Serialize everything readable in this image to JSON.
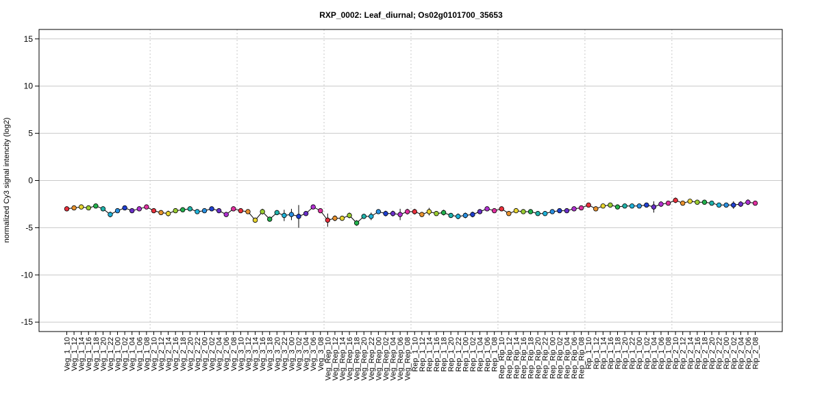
{
  "chart_data": {
    "type": "line",
    "title": "RXP_0002: Leaf_diurnal; Os02g0101700_35653",
    "xlabel": "",
    "ylabel": "normalized Cy3 signal intencity (log2)",
    "ylim": [
      -16,
      16
    ],
    "yticks": [
      -15,
      -10,
      -5,
      0,
      5,
      10,
      15
    ],
    "grid": true,
    "categories": [
      "Veg_1_10",
      "Veg_1_12",
      "Veg_1_14",
      "Veg_1_16",
      "Veg_1_18",
      "Veg_1_20",
      "Veg_1_22",
      "Veg_1_00",
      "Veg_1_02",
      "Veg_1_04",
      "Veg_1_06",
      "Veg_1_08",
      "Veg_2_10",
      "Veg_2_12",
      "Veg_2_14",
      "Veg_2_16",
      "Veg_2_18",
      "Veg_2_20",
      "Veg_2_22",
      "Veg_2_00",
      "Veg_2_02",
      "Veg_2_04",
      "Veg_2_06",
      "Veg_2_08",
      "Veg_3_10",
      "Veg_3_12",
      "Veg_3_14",
      "Veg_3_16",
      "Veg_3_18",
      "Veg_3_20",
      "Veg_3_22",
      "Veg_3_00",
      "Veg_3_02",
      "Veg_3_04",
      "Veg_3_06",
      "Veg_3_08",
      "Veg_Rep_10",
      "Veg_Rep_12",
      "Veg_Rep_14",
      "Veg_Rep_16",
      "Veg_Rep_18",
      "Veg_Rep_20",
      "Veg_Rep_22",
      "Veg_Rep_00",
      "Veg_Rep_02",
      "Veg_Rep_04",
      "Veg_Rep_06",
      "Veg_Rep_08",
      "Rep_1_10",
      "Rep_1_12",
      "Rep_1_14",
      "Rep_1_16",
      "Rep_1_18",
      "Rep_1_20",
      "Rep_1_22",
      "Rep_1_00",
      "Rep_1_02",
      "Rep_1_04",
      "Rep_1_06",
      "Rep_1_08",
      "Rep_Rip_10",
      "Rep_Rip_12",
      "Rep_Rip_14",
      "Rep_Rip_16",
      "Rep_Rip_18",
      "Rep_Rip_20",
      "Rep_Rip_22",
      "Rep_Rip_00",
      "Rep_Rip_02",
      "Rep_Rip_04",
      "Rep_Rip_06",
      "Rep_Rip_08",
      "Rip_1_10",
      "Rip_1_12",
      "Rip_1_14",
      "Rip_1_16",
      "Rip_1_18",
      "Rip_1_20",
      "Rip_1_22",
      "Rip_1_00",
      "Rip_1_02",
      "Rip_1_04",
      "Rip_1_06",
      "Rip_1_08",
      "Rip_2_10",
      "Rip_2_12",
      "Rip_2_14",
      "Rip_2_16",
      "Rip_2_18",
      "Rip_2_20",
      "Rip_2_22",
      "Rip_2_00",
      "Rip_2_02",
      "Rip_2_04",
      "Rip_2_06",
      "Rip_2_08"
    ],
    "values": [
      -3.0,
      -2.9,
      -2.8,
      -2.9,
      -2.7,
      -3.0,
      -3.6,
      -3.2,
      -2.9,
      -3.2,
      -3.0,
      -2.8,
      -3.2,
      -3.4,
      -3.5,
      -3.2,
      -3.1,
      -3.0,
      -3.3,
      -3.2,
      -3.0,
      -3.2,
      -3.6,
      -3.0,
      -3.2,
      -3.3,
      -4.2,
      -3.3,
      -4.1,
      -3.4,
      -3.7,
      -3.6,
      -3.8,
      -3.5,
      -2.8,
      -3.2,
      -4.2,
      -4.0,
      -4.0,
      -3.7,
      -4.5,
      -3.8,
      -3.8,
      -3.3,
      -3.5,
      -3.5,
      -3.6,
      -3.3,
      -3.3,
      -3.6,
      -3.3,
      -3.5,
      -3.4,
      -3.7,
      -3.8,
      -3.7,
      -3.6,
      -3.3,
      -3.0,
      -3.2,
      -3.0,
      -3.5,
      -3.2,
      -3.3,
      -3.3,
      -3.5,
      -3.5,
      -3.3,
      -3.2,
      -3.2,
      -3.0,
      -2.9,
      -2.6,
      -3.0,
      -2.7,
      -2.6,
      -2.8,
      -2.7,
      -2.7,
      -2.7,
      -2.6,
      -2.8,
      -2.5,
      -2.4,
      -2.1,
      -2.4,
      -2.2,
      -2.3,
      -2.3,
      -2.4,
      -2.6,
      -2.6,
      -2.6,
      -2.5,
      -2.3,
      -2.4
    ],
    "errors": [
      0.1,
      0.1,
      0.1,
      0.1,
      0.1,
      0.1,
      0.3,
      0.1,
      0.1,
      0.2,
      0.2,
      0.1,
      0.2,
      0.1,
      0.3,
      0.2,
      0.1,
      0.1,
      0.1,
      0.1,
      0.1,
      0.1,
      0.1,
      0.1,
      0.2,
      0.2,
      0.2,
      0.3,
      0.2,
      0.1,
      0.6,
      0.6,
      1.2,
      0.2,
      0.1,
      0.1,
      0.7,
      0.3,
      0.1,
      0.3,
      0.3,
      0.2,
      0.4,
      0.2,
      0.3,
      0.3,
      0.6,
      0.3,
      0.3,
      0.2,
      0.4,
      0.2,
      0.3,
      0.2,
      0.3,
      0.3,
      0.3,
      0.2,
      0.1,
      0.1,
      0.2,
      0.2,
      0.1,
      0.1,
      0.1,
      0.1,
      0.1,
      0.1,
      0.1,
      0.1,
      0.1,
      0.2,
      0.1,
      0.2,
      0.2,
      0.2,
      0.1,
      0.2,
      0.2,
      0.2,
      0.2,
      0.6,
      0.3,
      0.1,
      0.3,
      0.2,
      0.1,
      0.1,
      0.1,
      0.1,
      0.1,
      0.2,
      0.4,
      0.3,
      0.3,
      0.1
    ],
    "point_colors": [
      "#e8303c",
      "#e8922e",
      "#e8d530",
      "#9acd32",
      "#22b14c",
      "#20b2aa",
      "#20b2d8",
      "#2a8fe0",
      "#2040d0",
      "#6a30c8",
      "#b030d0",
      "#e030a0",
      "#e8303c",
      "#e8922e",
      "#e8d530",
      "#9acd32",
      "#22b14c",
      "#20b2aa",
      "#20b2d8",
      "#2a8fe0",
      "#2040d0",
      "#6a30c8",
      "#b030d0",
      "#e030a0",
      "#e8303c",
      "#e8922e",
      "#e8d530",
      "#9acd32",
      "#22b14c",
      "#20b2aa",
      "#20b2d8",
      "#2a8fe0",
      "#2040d0",
      "#6a30c8",
      "#b030d0",
      "#e030a0",
      "#e8303c",
      "#e8922e",
      "#e8d530",
      "#9acd32",
      "#22b14c",
      "#20b2aa",
      "#20b2d8",
      "#2a8fe0",
      "#2040d0",
      "#6a30c8",
      "#b030d0",
      "#e030a0",
      "#e8303c",
      "#e8922e",
      "#e8d530",
      "#9acd32",
      "#22b14c",
      "#20b2aa",
      "#20b2d8",
      "#2a8fe0",
      "#2040d0",
      "#6a30c8",
      "#b030d0",
      "#e030a0",
      "#e8303c",
      "#e8922e",
      "#e8d530",
      "#9acd32",
      "#22b14c",
      "#20b2aa",
      "#20b2d8",
      "#2a8fe0",
      "#2040d0",
      "#6a30c8",
      "#b030d0",
      "#e030a0",
      "#e8303c",
      "#e8922e",
      "#e8d530",
      "#9acd32",
      "#22b14c",
      "#20b2aa",
      "#20b2d8",
      "#2a8fe0",
      "#2040d0",
      "#6a30c8",
      "#b030d0",
      "#e030a0",
      "#e8303c",
      "#e8922e",
      "#e8d530",
      "#9acd32",
      "#22b14c",
      "#20b2aa",
      "#20b2d8",
      "#2a8fe0",
      "#2040d0",
      "#6a30c8",
      "#b030d0",
      "#e030a0"
    ],
    "group_boundaries_after_index": [
      11,
      23,
      35,
      47,
      59,
      71,
      83
    ],
    "colors": {
      "line": "#000000",
      "grid": "#c8c8c8",
      "vline": "#c8c8c8",
      "frame": "#000000"
    }
  }
}
